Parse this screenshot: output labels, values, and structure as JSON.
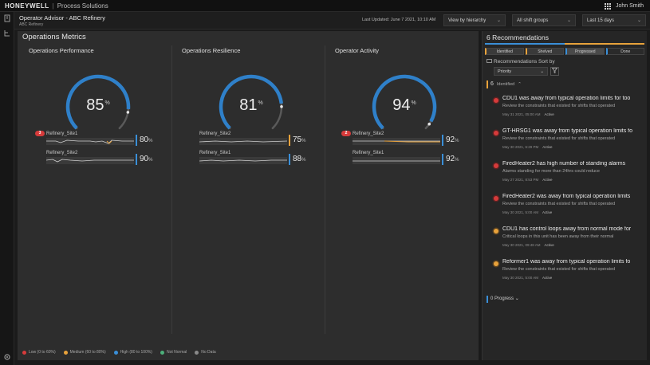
{
  "topbar": {
    "brand": "HONEYWELL",
    "separator": "|",
    "product": "Process Solutions",
    "user": "John Smith"
  },
  "header": {
    "title": "Operator Advisor - ABC Refinery",
    "subtitle": "ABC Refinery",
    "last_updated": "Last Updated: June 7 2021, 10:10 AM",
    "view_select": "View by hierarchy",
    "shift_select": "All shift groups",
    "range_select": "Last 15 days"
  },
  "metrics": {
    "title": "Operations Metrics",
    "columns": [
      {
        "title": "Operations Performance",
        "gauge_value": "85",
        "gauge_fraction": 0.85,
        "sites": [
          {
            "name": "Refinery_Site1",
            "badge": "3",
            "value": "80",
            "level": 0.8,
            "bar_color": "#3a8fd8"
          },
          {
            "name": "Refinery_Site2",
            "badge": "",
            "value": "90",
            "level": 0.9,
            "bar_color": "#3a8fd8"
          }
        ]
      },
      {
        "title": "Operations Resilience",
        "gauge_value": "81",
        "gauge_fraction": 0.81,
        "sites": [
          {
            "name": "Refinery_Site2",
            "badge": "",
            "value": "75",
            "level": 0.75,
            "bar_color": "#e8a23b"
          },
          {
            "name": "Refinery_Site1",
            "badge": "",
            "value": "88",
            "level": 0.88,
            "bar_color": "#3a8fd8"
          }
        ]
      },
      {
        "title": "Operator Activity",
        "gauge_value": "94",
        "gauge_fraction": 0.94,
        "sites": [
          {
            "name": "Refinery_Site2",
            "badge": "2",
            "value": "92",
            "level": 0.92,
            "bar_color": "#3a8fd8"
          },
          {
            "name": "Refinery_Site1",
            "badge": "",
            "value": "92",
            "level": 0.92,
            "bar_color": "#3a8fd8"
          }
        ]
      }
    ],
    "pct": "%",
    "legend": [
      {
        "label": "Low (0 to 60%)",
        "color": "#d63b3b"
      },
      {
        "label": "Medium (60 to 80%)",
        "color": "#e8a23b"
      },
      {
        "label": "High (80 to 100%)",
        "color": "#3a8fd8"
      },
      {
        "label": "Not Normal",
        "color": "#4caf7a"
      },
      {
        "label": "No Data",
        "color": "#8a8a8a"
      }
    ]
  },
  "recommendations": {
    "title": "6 Recommendations",
    "tabs": [
      "Identified",
      "Shelved",
      "Progressed",
      "Done"
    ],
    "sort_label": "Recommendations Sort by",
    "sort_value": "Priority",
    "group_count": "6",
    "group_label": "Identified",
    "items": [
      {
        "title": "CDU1 was away from typical operation limits for too",
        "desc": "Review the constraints that existed for shifts that operated",
        "date": "May 31 2021, 05:00 AM",
        "state": "Active",
        "color": "#d63b3b"
      },
      {
        "title": "GT-HRSG1 was away from typical operation limits fo",
        "desc": "Review the constraints that existed for shifts that operated",
        "date": "May 30 2021, 6:29 PM",
        "state": "Active",
        "color": "#d63b3b"
      },
      {
        "title": "FiredHeater2 has high number of standing alarms",
        "desc": "Alarms standing for more than 24hrs could reduce",
        "date": "May 27 2021, 8:53 PM",
        "state": "Active",
        "color": "#d63b3b"
      },
      {
        "title": "FiredHeater2 was away from typical operation limits",
        "desc": "Review the constraints that existed for shifts that operated",
        "date": "May 30 2021, 5:00 AM",
        "state": "Active",
        "color": "#d63b3b"
      },
      {
        "title": "CDU1 has control loops away from normal mode for",
        "desc": "Critical loops in this unit has been away from their normal",
        "date": "May 30 2021, 09:48 AM",
        "state": "Active",
        "color": "#e8a23b"
      },
      {
        "title": "Reformer1 was away from typical operation limits fo",
        "desc": "Review the constraints that existed for shifts that operated",
        "date": "May 30 2021, 5:00 AM",
        "state": "Active",
        "color": "#e8a23b"
      }
    ],
    "progress_count": "0",
    "progress_label": "Progress"
  }
}
